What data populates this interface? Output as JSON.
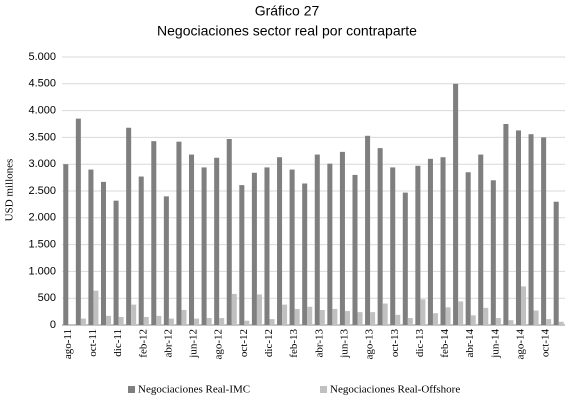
{
  "chart_data": {
    "type": "bar",
    "title": "Gráfico 27",
    "subtitle": "Negociaciones sector real por contraparte",
    "y_label": "USD millones",
    "categories": [
      "ago-11",
      null,
      "oct-11",
      null,
      "dic-11",
      null,
      "feb-12",
      null,
      "abr-12",
      null,
      "jun-12",
      null,
      "ago-12",
      null,
      "oct-12",
      null,
      "dic-12",
      null,
      "feb-13",
      null,
      "abr-13",
      null,
      "jun-13",
      null,
      "ago-13",
      null,
      "oct-13",
      null,
      "dic-13",
      null,
      "feb-14",
      null,
      "abr-14",
      null,
      "jun-14",
      null,
      "ago-14",
      null,
      "oct-14",
      null
    ],
    "series": [
      {
        "name": "Negociaciones Real-IMC",
        "color": "#7f7f7f",
        "values": [
          3000,
          3850,
          2900,
          2670,
          2320,
          3680,
          2770,
          3430,
          2400,
          3420,
          3180,
          2940,
          3120,
          3470,
          2610,
          2840,
          2940,
          3130,
          2900,
          2640,
          3180,
          3010,
          3230,
          2800,
          3530,
          3300,
          2940,
          2470,
          2970,
          3100,
          3130,
          4500,
          2850,
          3180,
          2700,
          3750,
          3630,
          3560,
          3500,
          2300
        ]
      },
      {
        "name": "Negociaciones Real-Offshore",
        "color": "#c0c0c0",
        "values": [
          0,
          120,
          640,
          170,
          150,
          380,
          150,
          170,
          120,
          280,
          120,
          130,
          130,
          580,
          80,
          570,
          110,
          380,
          300,
          340,
          280,
          300,
          260,
          240,
          240,
          400,
          190,
          130,
          480,
          220,
          330,
          440,
          180,
          320,
          130,
          90,
          720,
          270,
          110,
          60
        ]
      }
    ],
    "ylim": [
      0,
      5000
    ],
    "yticks": [
      0,
      500,
      {
        "value": 1000,
        "label": "1.000"
      },
      {
        "value": 1500,
        "label": "1.500"
      },
      {
        "value": 2000,
        "label": "2.000"
      },
      {
        "value": 2500,
        "label": "2.500"
      },
      {
        "value": 3000,
        "label": "3.000"
      },
      {
        "value": 3500,
        "label": "3.500"
      },
      {
        "value": 4000,
        "label": "4.000"
      },
      {
        "value": 4500,
        "label": "4.500"
      },
      {
        "value": 5000,
        "label": "5.000"
      }
    ],
    "grid": true,
    "legend": "bottom"
  }
}
